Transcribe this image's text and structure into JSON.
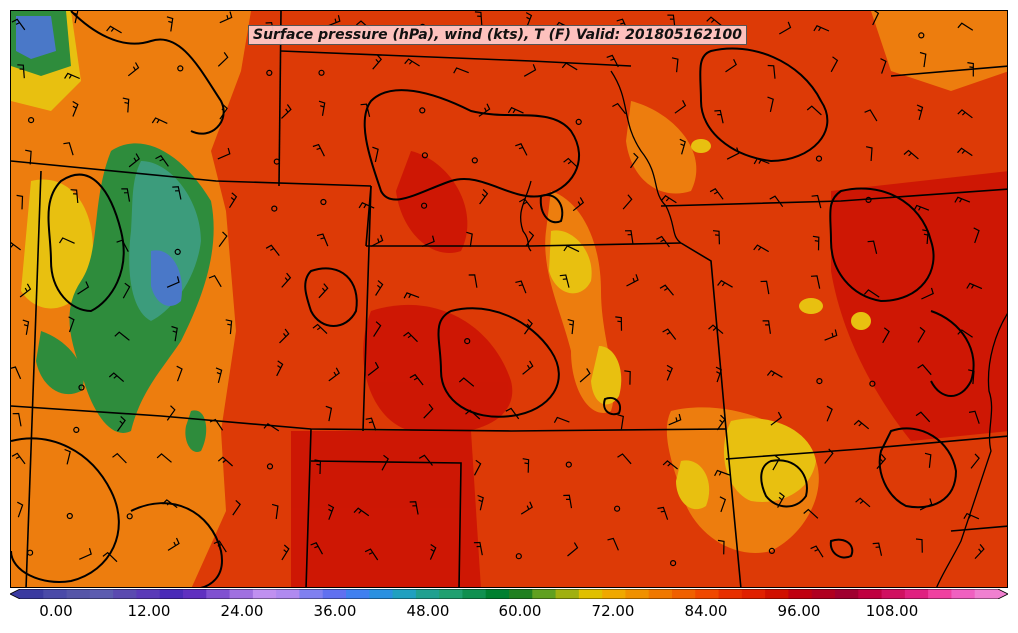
{
  "title": "Surface pressure (hPa), wind (kts), T (F) Valid: 201805162100",
  "colorbar": {
    "tick_labels": [
      "0.00",
      "12.00",
      "24.00",
      "36.00",
      "48.00",
      "60.00",
      "72.00",
      "84.00",
      "96.00",
      "108.00"
    ],
    "range": [
      0,
      120
    ],
    "colors": [
      "#3a3aa0",
      "#4a4aa8",
      "#5555a8",
      "#5c5cb0",
      "#5a4ab0",
      "#5a3ab8",
      "#4a2ab8",
      "#6030c0",
      "#8050d0",
      "#a070e0",
      "#c090f0",
      "#b08af0",
      "#8080f0",
      "#6070f0",
      "#4080f0",
      "#2a90e0",
      "#20a0c0",
      "#20a090",
      "#20a070",
      "#109050",
      "#008030",
      "#208020",
      "#60a020",
      "#a0b010",
      "#e0c000",
      "#f0a800",
      "#f09000",
      "#f07800",
      "#f06000",
      "#f04800",
      "#e83000",
      "#e02000",
      "#d01000",
      "#c00010",
      "#b00020",
      "#a00030",
      "#c00040",
      "#d01060",
      "#e02080",
      "#f040a0",
      "#f060c0",
      "#f080d0"
    ]
  },
  "legend_palette": {
    "background": "#dd3a06",
    "warm_patch": "#f08a10",
    "hot_patch": "#c80c04",
    "yellow_patch": "#e8c010",
    "green_patch": "#2e8c3c",
    "blue_patch": "#4a78c8",
    "contour": "#000000"
  },
  "map_features": [
    "state-borders",
    "pressure-isobars",
    "wind-barbs",
    "temperature-fill"
  ]
}
